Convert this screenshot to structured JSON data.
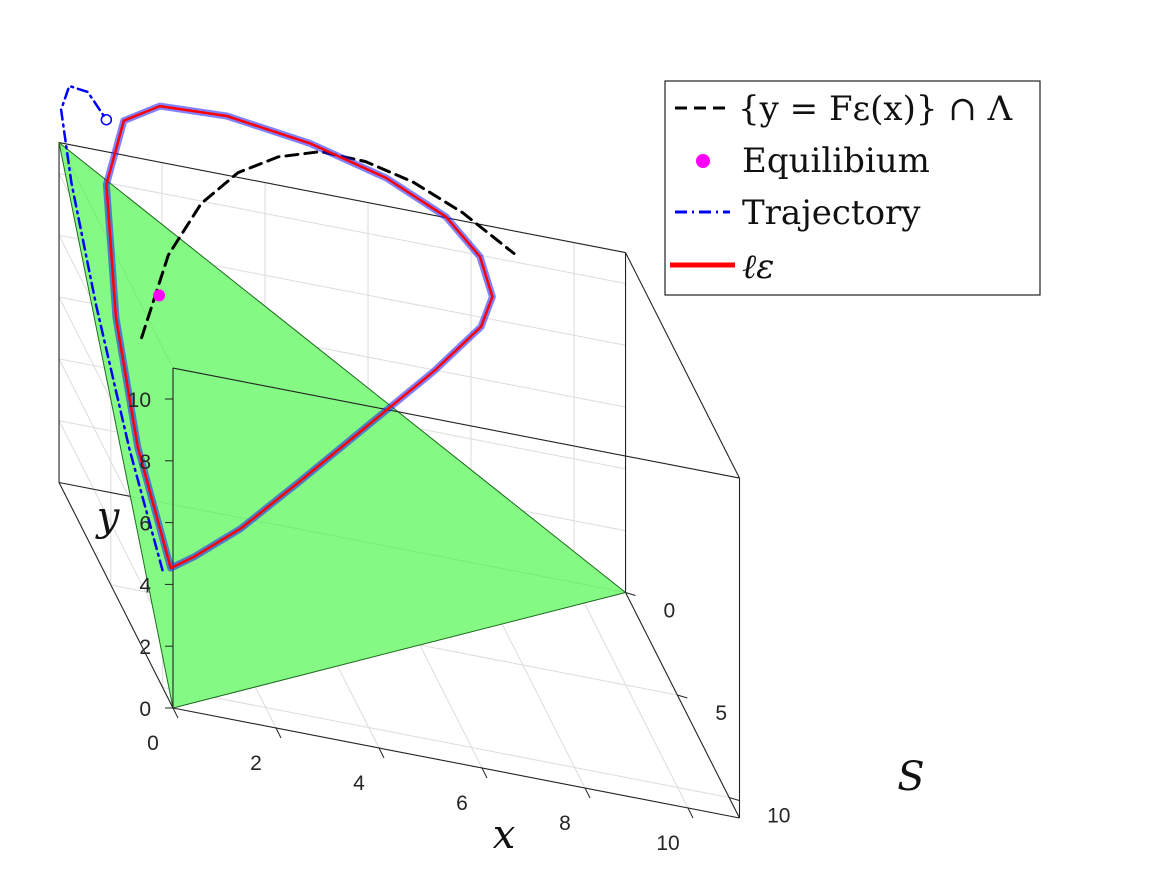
{
  "chart_data": {
    "type": "line3d",
    "xlabel": "x",
    "ylabel": "y",
    "zlabel": "S",
    "x_ticks": [
      "0",
      "2",
      "4",
      "6",
      "8",
      "10"
    ],
    "y_ticks": [
      "0",
      "2",
      "4",
      "6",
      "8",
      "10"
    ],
    "s_ticks": [
      "0",
      "5",
      "10"
    ],
    "xlim": [
      0,
      11
    ],
    "ylim": [
      0,
      11
    ],
    "slim": [
      0,
      11
    ],
    "grid": true,
    "legend_position": "top-right",
    "legend": {
      "curve_set": "{y = Fε(x)} ∩ Λ",
      "equilibrium": "Equilibium",
      "trajectory": "Trajectory",
      "cycle": "ℓε"
    },
    "plane": {
      "description_points": [
        [
          0,
          0,
          11
        ],
        [
          11,
          0,
          0
        ],
        [
          0,
          11,
          0
        ]
      ],
      "color": "#7dfa7d"
    },
    "series": [
      {
        "name": "{y = Fε(x)} ∩ Λ",
        "style": "dashed",
        "color": "#000000",
        "points": [
          [
            1.0,
            7.0,
            3.0
          ],
          [
            2.0,
            8.4,
            0.6
          ],
          [
            3.0,
            9.2,
            -1.2
          ],
          [
            4.0,
            9.6,
            -2.6
          ],
          [
            5.0,
            9.7,
            -3.7
          ],
          [
            6.0,
            9.6,
            -4.6
          ],
          [
            7.0,
            9.2,
            -5.2
          ],
          [
            8.0,
            8.6,
            -5.6
          ],
          [
            9.0,
            7.8,
            -5.8
          ],
          [
            10.0,
            6.8,
            -5.8
          ]
        ]
      },
      {
        "name": "Equilibium",
        "style": "marker",
        "color": "#ff00ff",
        "points": [
          [
            1.6,
            7.7,
            1.7
          ]
        ]
      },
      {
        "name": "Trajectory",
        "style": "dashdot",
        "color": "#0000ff",
        "points": [
          [
            0.4,
            2.6,
            8.0
          ],
          [
            0.2,
            5.0,
            5.8
          ],
          [
            0.1,
            7.8,
            3.1
          ],
          [
            0.1,
            10.2,
            0.7
          ],
          [
            0.2,
            11.6,
            -0.8
          ],
          [
            0.5,
            12.0,
            -1.5
          ],
          [
            0.9,
            11.8,
            -1.7
          ],
          [
            1.2,
            11.2,
            -1.4
          ]
        ]
      },
      {
        "name": "ℓε",
        "style": "solid",
        "color": "#ff0000",
        "points": [
          [
            0.6,
            2.6,
            7.8
          ],
          [
            0.4,
            5.0,
            5.6
          ],
          [
            0.5,
            7.5,
            3.0
          ],
          [
            0.9,
            10.0,
            0.1
          ],
          [
            1.6,
            11.1,
            -1.7
          ],
          [
            2.5,
            11.2,
            -2.7
          ],
          [
            4.0,
            10.7,
            -3.7
          ],
          [
            5.8,
            9.8,
            -4.6
          ],
          [
            7.4,
            8.8,
            -5.2
          ],
          [
            8.6,
            7.8,
            -5.4
          ],
          [
            9.2,
            6.9,
            -5.1
          ],
          [
            9.3,
            6.1,
            -4.4
          ],
          [
            8.9,
            5.6,
            -3.5
          ],
          [
            7.6,
            5.0,
            -1.6
          ],
          [
            5.8,
            4.3,
            0.9
          ],
          [
            4.0,
            3.6,
            3.4
          ],
          [
            2.4,
            3.0,
            5.6
          ],
          [
            1.2,
            2.7,
            7.1
          ],
          [
            0.6,
            2.6,
            7.8
          ]
        ]
      }
    ]
  }
}
